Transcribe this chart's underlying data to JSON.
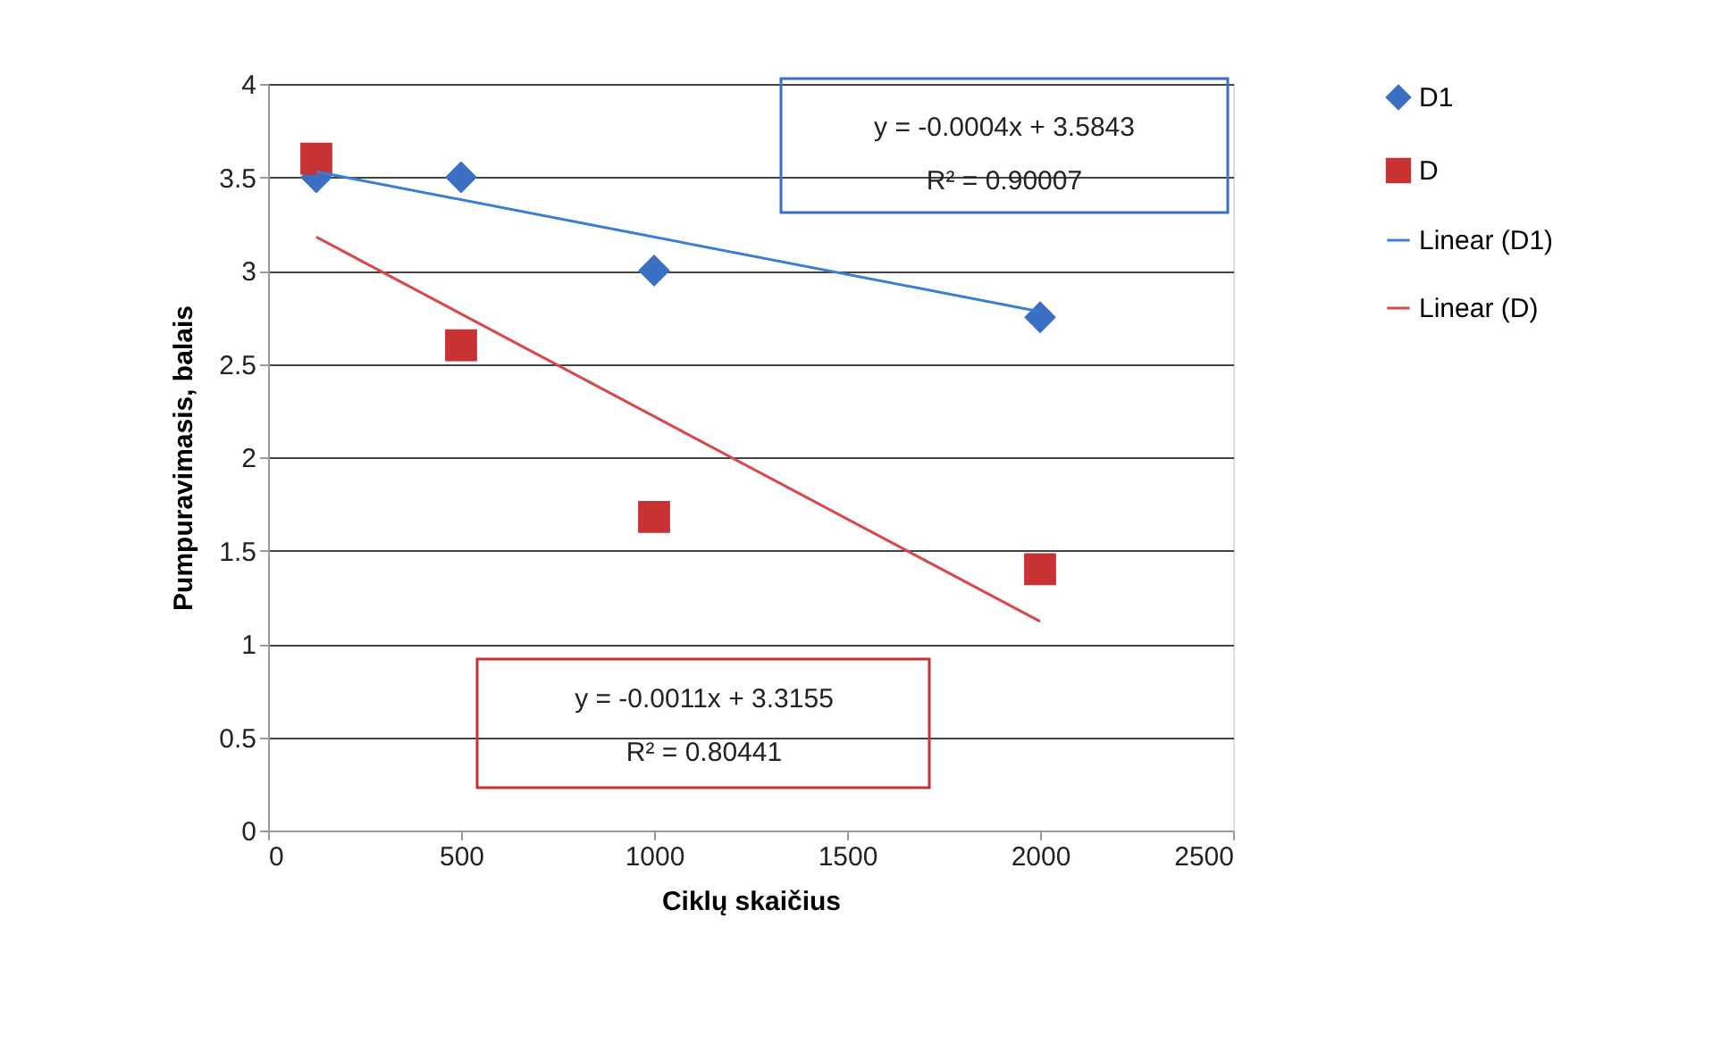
{
  "chart_data": {
    "type": "scatter",
    "xlabel": "Ciklų skaičius",
    "ylabel": "Pumpuravimasis, balais",
    "xlim": [
      0,
      2500
    ],
    "xticks": [
      0,
      500,
      1000,
      1500,
      2000,
      2500
    ],
    "ylim": [
      0,
      4
    ],
    "yticks": [
      0,
      0.5,
      1,
      1.5,
      2,
      2.5,
      3,
      3.5,
      4
    ],
    "grid": "y",
    "legend": "right",
    "series": [
      {
        "name": "D1",
        "marker": "diamond",
        "color": "#3a6fc4",
        "x": [
          125,
          500,
          1000,
          2000
        ],
        "values": [
          3.5,
          3.5,
          3.0,
          2.75
        ]
      },
      {
        "name": "D",
        "marker": "square",
        "color": "#c83232",
        "x": [
          125,
          500,
          1000,
          2000
        ],
        "values": [
          3.6,
          2.6,
          1.68,
          1.4
        ]
      },
      {
        "name": "Linear (D1)",
        "type": "line",
        "color": "#3a7fd0",
        "x": [
          125,
          2000
        ],
        "values": [
          3.53,
          2.78
        ]
      },
      {
        "name": "Linear (D)",
        "type": "line",
        "color": "#d84a4a",
        "x": [
          125,
          2000
        ],
        "values": [
          3.18,
          1.12
        ]
      }
    ],
    "annotations": [
      "y = -0.0004x + 3.5843",
      "R² = 0.90007",
      "y = -0.0011x + 3.3155",
      "R² = 0.80441"
    ]
  }
}
